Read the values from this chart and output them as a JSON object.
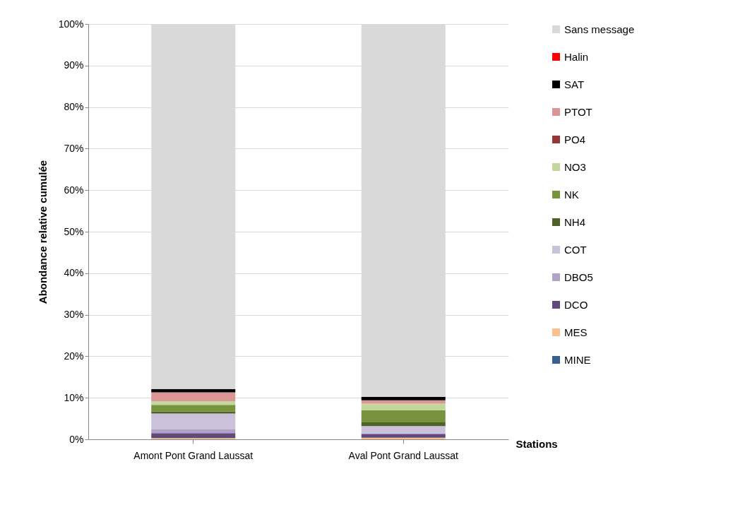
{
  "chart_data": {
    "type": "bar",
    "stacked": true,
    "xlabel": "Stations",
    "ylabel": "Abondance  relative cumulée",
    "categories": [
      "Amont Pont Grand Laussat",
      "Aval Pont Grand Laussat"
    ],
    "series": [
      {
        "name": "MINE",
        "color": "#376092",
        "values": [
          0,
          0
        ]
      },
      {
        "name": "MES",
        "color": "#fac090",
        "values": [
          0.3,
          0.4
        ]
      },
      {
        "name": "DCO",
        "color": "#604a7b",
        "values": [
          1.2,
          0.9
        ]
      },
      {
        "name": "DBO5",
        "color": "#b3a2c7",
        "values": [
          0.9,
          null
        ]
      },
      {
        "name": "COT",
        "color": "#ccc1da",
        "values": [
          3.8,
          1.9
        ]
      },
      {
        "name": "NH4",
        "color": "#4f6228",
        "values": [
          0.5,
          0.9
        ]
      },
      {
        "name": "NK",
        "color": "#77933c",
        "values": [
          1.6,
          2.9
        ]
      },
      {
        "name": "NO3",
        "color": "#c3d69b",
        "values": [
          0.9,
          1.6
        ]
      },
      {
        "name": "PO4",
        "color": "#953735",
        "values": [
          0,
          0
        ]
      },
      {
        "name": "PTOT",
        "color": "#d99694",
        "values": [
          2.1,
          0.8
        ]
      },
      {
        "name": "SAT",
        "color": "#000000",
        "values": [
          0.8,
          0.8
        ]
      },
      {
        "name": "Halin",
        "color": "#ff0000",
        "values": [
          0,
          0
        ]
      },
      {
        "name": "Sans message",
        "color": "#d9d9d9",
        "values": [
          87.9,
          89.7
        ]
      }
    ],
    "ylim": [
      0,
      100
    ],
    "yticks": [
      {
        "value": 0,
        "label": "0%"
      },
      {
        "value": 10,
        "label": "10%"
      },
      {
        "value": 20,
        "label": "20%"
      },
      {
        "value": 30,
        "label": "30%"
      },
      {
        "value": 40,
        "label": "40%"
      },
      {
        "value": 50,
        "label": "50%"
      },
      {
        "value": 60,
        "label": "60%"
      },
      {
        "value": 70,
        "label": "70%"
      },
      {
        "value": 80,
        "label": "80%"
      },
      {
        "value": 90,
        "label": "90%"
      },
      {
        "value": 100,
        "label": "100%"
      }
    ],
    "grid": "y",
    "legend": "right"
  }
}
